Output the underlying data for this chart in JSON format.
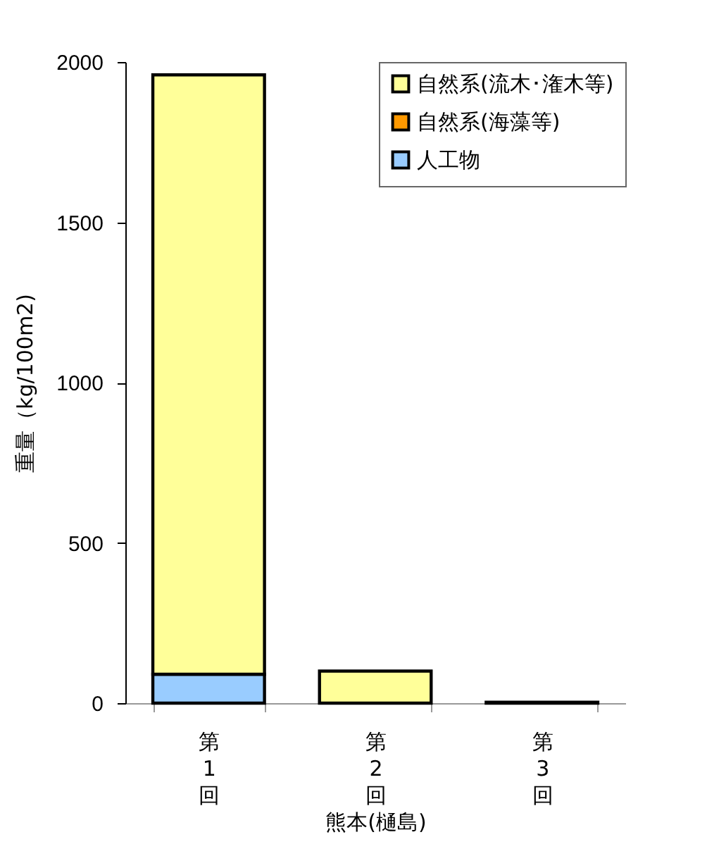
{
  "chart_data": {
    "type": "bar",
    "stacked": true,
    "xlabel": "熊本(樋島)",
    "ylabel": "重量（kg/100m2)",
    "categories": [
      "第1回",
      "第2回",
      "第3回"
    ],
    "series": [
      {
        "name": "人工物",
        "color": "#99ccff",
        "values": [
          90,
          null,
          null
        ]
      },
      {
        "name": "自然系(海藻等)",
        "color": "#ff9900",
        "values": [
          null,
          null,
          null
        ]
      },
      {
        "name": "自然系(流木･潅木等)",
        "color": "#ffff99",
        "values": [
          1870,
          100,
          3
        ]
      }
    ],
    "ylim": [
      0,
      2000
    ],
    "yticks": [
      0,
      500,
      1000,
      1500,
      2000
    ],
    "grid": false,
    "legend": "top right"
  }
}
